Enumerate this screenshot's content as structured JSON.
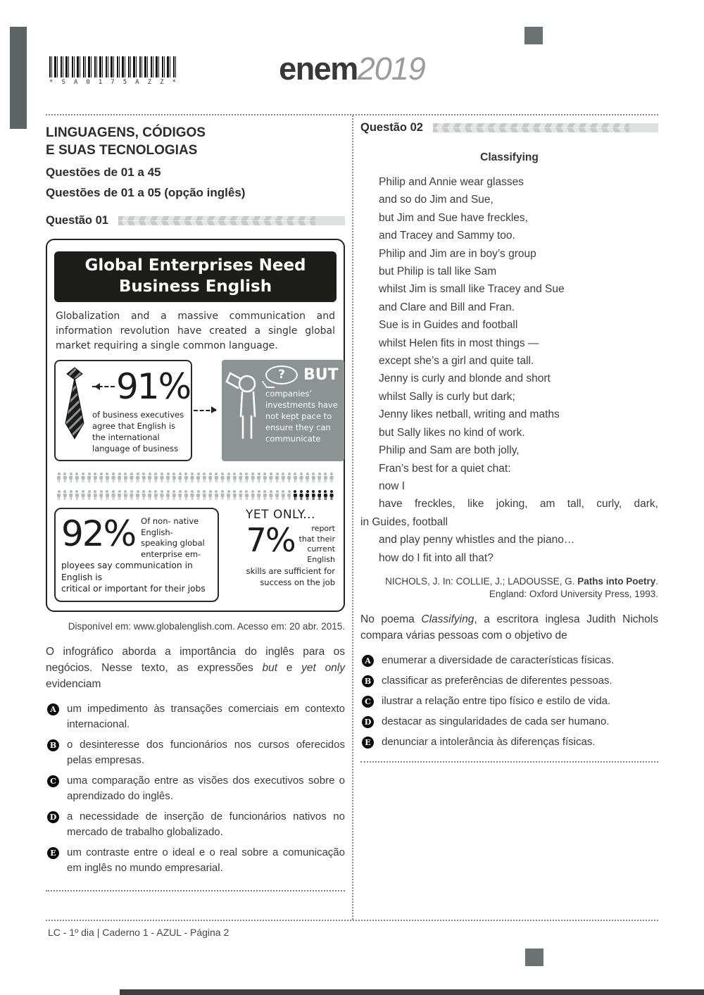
{
  "page": {
    "barcode_text": [
      "*",
      "S",
      "A",
      "0",
      "1",
      "7",
      "5",
      "A",
      "Z",
      "Z",
      "*"
    ],
    "logo": {
      "brand": "enem",
      "year": "2019"
    },
    "footer": "LC - 1º dia | Caderno 1 - AZUL - Página 2"
  },
  "header_left": {
    "title_line1": "LINGUAGENS, CÓDIGOS",
    "title_line2": "E SUAS TECNOLOGIAS",
    "subtitle1": "Questões de 01 a 45",
    "subtitle2": "Questões de 01 a 05 (opção inglês)"
  },
  "q1": {
    "label": "Questão 01",
    "infographic": {
      "title_line1": "Global Enterprises Need",
      "title_line2": "Business English",
      "intro": "Globalization and a massive communication and information revolution have created a single global market requiring a single common language.",
      "stat91": {
        "value": "91%",
        "caption": "of business executives agree that English is the international language of business"
      },
      "but_box": {
        "bubble": "?",
        "label": "BUT",
        "text": "companies’ investments have not kept pace to ensure they can communicate"
      },
      "icon_rows": {
        "row1": {
          "total": 46,
          "dark": 0
        },
        "row2": {
          "total": 46,
          "dark": 7
        }
      },
      "stat92": {
        "value": "92%",
        "side_text": "Of non- native\nEnglish-\nspeaking global\nenterprise em-",
        "bottom_text": "ployees say communication in English is\ncritical or important for their jobs"
      },
      "yet_only": {
        "heading": "YET ONLY...",
        "value": "7%",
        "side_text": "report\nthat their\ncurrent\nEnglish",
        "bottom_text": "skills are sufficient for\nsuccess on the job"
      }
    },
    "source": "Disponível em: www.globalenglish.com. Acesso em: 20 abr. 2015.",
    "intro_parts": {
      "p1": "O infográfico aborda a importância do inglês para os negócios. Nesse texto, as expressões ",
      "it1": "but",
      "p2": " e ",
      "it2": "yet only",
      "p3": " evidenciam"
    },
    "options": [
      {
        "letter": "A",
        "text": "um impedimento às transações comerciais em contexto internacional."
      },
      {
        "letter": "B",
        "text": "o desinteresse dos funcionários nos cursos oferecidos pelas empresas."
      },
      {
        "letter": "C",
        "text": "uma comparação entre as visões dos executivos sobre o aprendizado do inglês."
      },
      {
        "letter": "D",
        "text": "a necessidade de inserção de funcionários nativos no mercado de trabalho globalizado."
      },
      {
        "letter": "E",
        "text": "um contraste entre o ideal e o real sobre a comunicação em inglês no mundo empresarial."
      }
    ]
  },
  "q2": {
    "label": "Questão 02",
    "poem": {
      "title": "Classifying",
      "lines_a": [
        "Philip and Annie wear glasses",
        "and so do Jim and Sue,",
        "but Jim and Sue have freckles,",
        "and Tracey and Sammy too.",
        "Philip and Jim are in boy’s group",
        "but Philip is tall like Sam",
        "whilst Jim is small like Tracey and Sue",
        "and Clare and Bill and Fran.",
        "Sue is in Guides and football",
        "whilst Helen fits in most things —",
        "except she’s a girl and quite tall.",
        "Jenny is curly and blonde and short",
        "whilst Sally is curly but dark;",
        "Jenny likes netball, writing and maths",
        "but Sally likes no kind of work.",
        "Philip and Sam are both jolly,",
        "Fran’s best for a quiet chat:",
        "now I"
      ],
      "wrap_line": "have freckles, like joking, am tall, curly, dark,",
      "wrap_cont": "in Guides, football",
      "lines_b": [
        "and play penny whistles and the piano…",
        "how do I fit into all that?"
      ]
    },
    "source": {
      "l1_normal": "NICHOLS, J. In: COLLIE, J.; LADOUSSE, G. ",
      "l1_bold": "Paths into Poetry",
      "l1_end": ".",
      "l2": "England: Oxford University Press, 1993."
    },
    "intro_parts": {
      "p1": "No poema ",
      "it1": "Classifying",
      "p2": ", a escritora inglesa Judith Nichols compara várias pessoas com o objetivo de"
    },
    "options": [
      {
        "letter": "A",
        "text": "enumerar a diversidade de características físicas."
      },
      {
        "letter": "B",
        "text": "classificar as preferências de diferentes pessoas."
      },
      {
        "letter": "C",
        "text": "ilustrar a relação entre tipo físico e estilo de vida."
      },
      {
        "letter": "D",
        "text": "destacar as singularidades de cada ser humano."
      },
      {
        "letter": "E",
        "text": "denunciar a intolerância às diferenças físicas."
      }
    ]
  }
}
